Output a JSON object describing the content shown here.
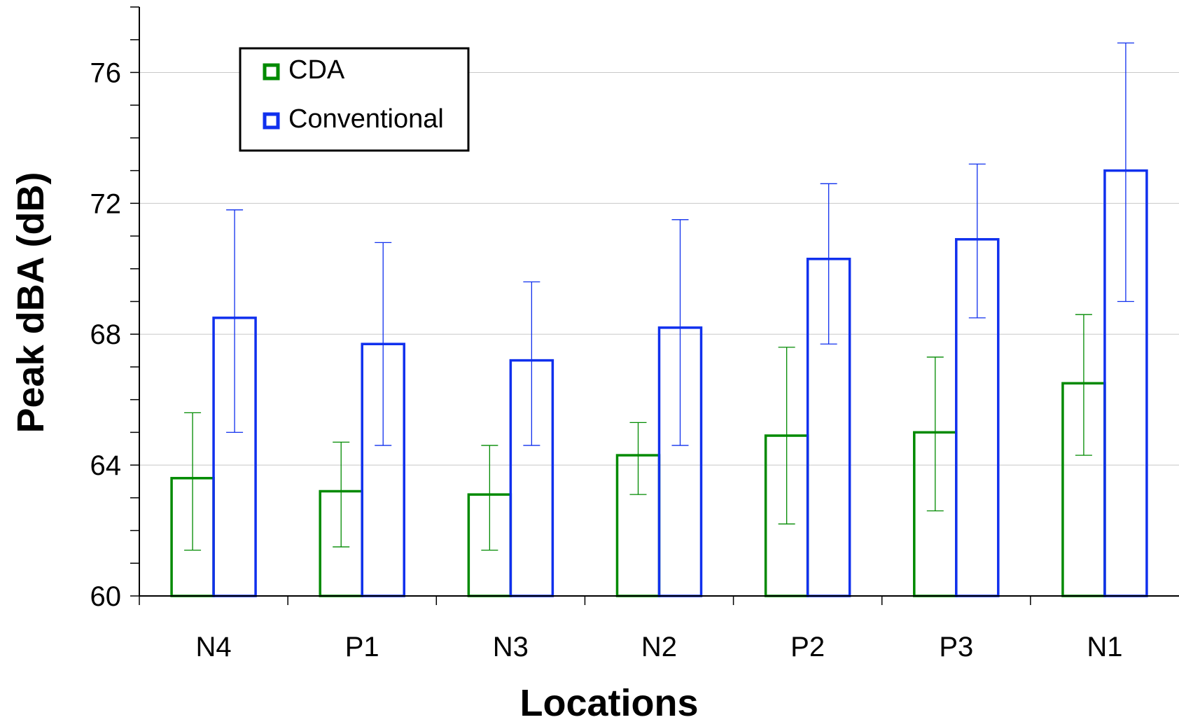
{
  "chart_data": {
    "type": "bar",
    "xlabel": "Locations",
    "ylabel": "Peak dBA (dB)",
    "ylim": [
      60,
      78
    ],
    "yticks": [
      60,
      64,
      68,
      72,
      76
    ],
    "minor_tick_step": 1,
    "grid": true,
    "legend_position": "top-left",
    "categories": [
      "N4",
      "P1",
      "N3",
      "N2",
      "P2",
      "P3",
      "N1"
    ],
    "series": [
      {
        "name": "CDA",
        "color": "#008a00",
        "values": [
          63.6,
          63.2,
          63.1,
          64.3,
          64.9,
          65.0,
          66.5
        ],
        "error_low": [
          61.4,
          61.5,
          61.4,
          63.1,
          62.2,
          62.6,
          64.3
        ],
        "error_high": [
          65.6,
          64.7,
          64.6,
          65.3,
          67.6,
          67.3,
          68.6
        ]
      },
      {
        "name": "Conventional",
        "color": "#1030ee",
        "values": [
          68.5,
          67.7,
          67.2,
          68.2,
          70.3,
          70.9,
          73.0
        ],
        "error_low": [
          65.0,
          64.6,
          64.6,
          64.6,
          67.7,
          68.5,
          69.0
        ],
        "error_high": [
          71.8,
          70.8,
          69.6,
          71.5,
          72.6,
          73.2,
          76.9
        ]
      }
    ]
  }
}
